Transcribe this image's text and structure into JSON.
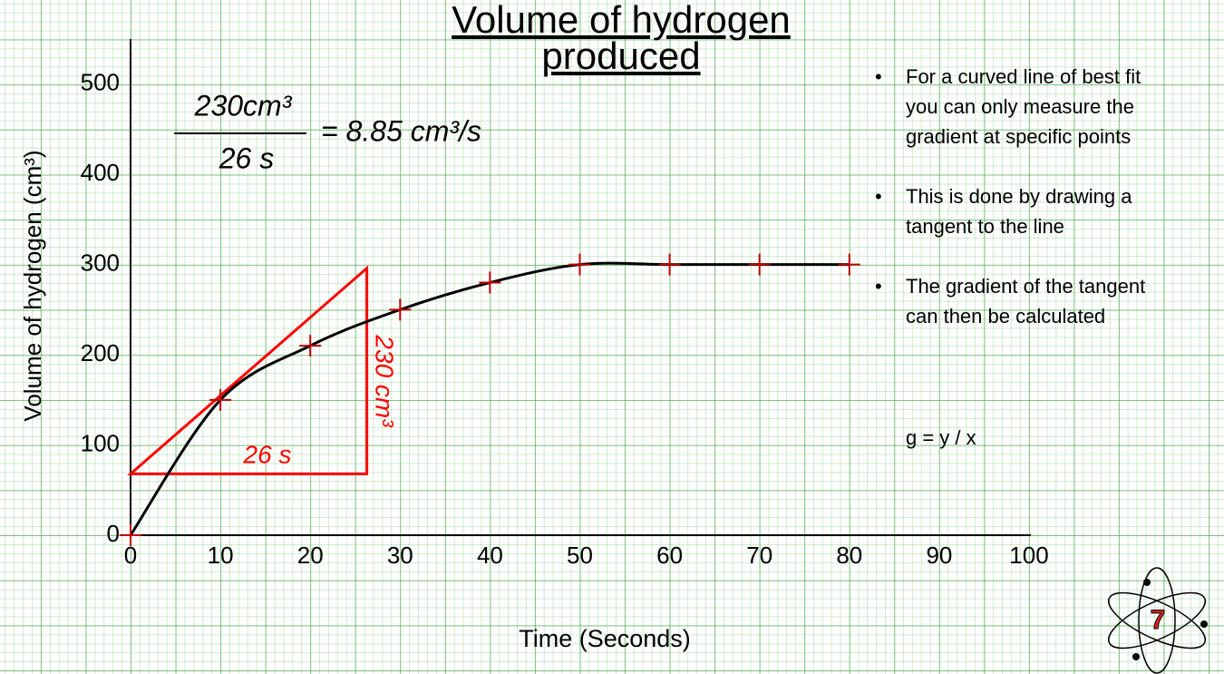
{
  "chart_data": {
    "type": "scatter",
    "title": "Volume of hydrogen produced",
    "x_label": "Time (Seconds)",
    "y_label": "Volume of hydrogen (cm³)",
    "x": [
      0,
      10,
      20,
      30,
      40,
      50,
      60,
      70,
      80
    ],
    "series": [
      {
        "color": "#c00000",
        "line_color": "#000000",
        "values": [
          0,
          150,
          210,
          250,
          280,
          300,
          300,
          300,
          300
        ]
      }
    ],
    "xlim": [
      0,
      100
    ],
    "ylim": [
      0,
      550
    ],
    "xticks": [
      0,
      10,
      20,
      30,
      40,
      50,
      60,
      70,
      80,
      90,
      100
    ],
    "yticks": [
      0,
      100,
      200,
      300,
      400,
      500
    ],
    "tangent": {
      "color": "#ff0000",
      "x": [
        0,
        26.3,
        26.3
      ],
      "y": [
        68,
        296,
        68
      ]
    },
    "annotations": {
      "fraction_numerator": "230cm³",
      "fraction_denominator": "26 s",
      "fraction_result": "=  8.85 cm³/s",
      "run_label": "26 s",
      "rise_label": "230 cm³"
    },
    "bullets": [
      "For a curved line of best fit you can only measure the gradient at specific points",
      "This is done by drawing a tangent to the line",
      "The gradient of the tangent can then be calculated"
    ],
    "formula": "g =  y / x",
    "logo_text": "7"
  }
}
